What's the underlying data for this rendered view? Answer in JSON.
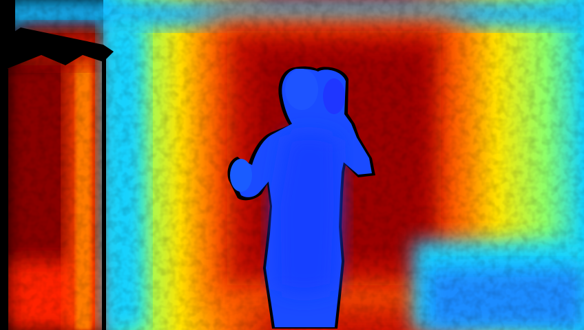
{
  "image": {
    "kind": "depth-map",
    "colormap": "jet",
    "subject": "person-silhouette",
    "palette": {
      "background": "#000000",
      "far_dark_red": "#7a0000",
      "far_red": "#c80d00",
      "mid_orange": "#ff6a00",
      "mid_yellow": "#ffe600",
      "near_green": "#8cff6a",
      "near_cyan": "#12d2ff",
      "near_blue": "#1466ff",
      "nearest_blue": "#1238ff"
    }
  }
}
